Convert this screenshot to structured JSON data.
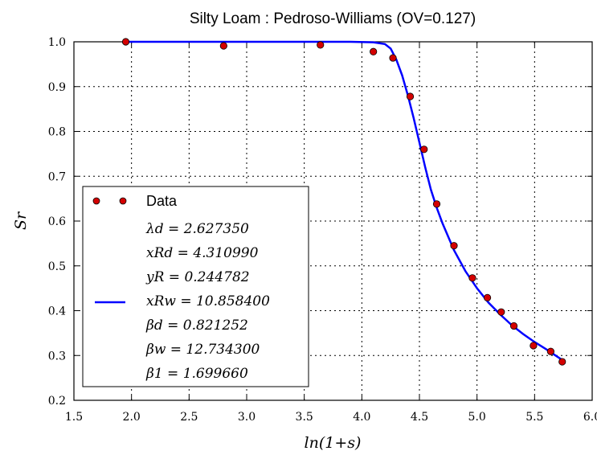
{
  "chart_data": {
    "type": "scatter",
    "title": "Silty Loam : Pedroso-Williams (OV=0.127)",
    "xlabel": "ln(1+s)",
    "ylabel": "Sr",
    "xlim": [
      1.5,
      6.0
    ],
    "ylim": [
      0.2,
      1.0
    ],
    "x_ticks": [
      "1.5",
      "2.0",
      "2.5",
      "3.0",
      "3.5",
      "4.0",
      "4.5",
      "5.0",
      "5.5",
      "6.0"
    ],
    "y_ticks": [
      "0.2",
      "0.3",
      "0.4",
      "0.5",
      "0.6",
      "0.7",
      "0.8",
      "0.9",
      "1.0"
    ],
    "grid": true,
    "legend_position": "lower-left",
    "series": [
      {
        "name": "Data",
        "kind": "scatter",
        "color": "#d40000",
        "x": [
          1.95,
          2.8,
          3.64,
          4.1,
          4.27,
          4.42,
          4.54,
          4.65,
          4.8,
          4.96,
          5.09,
          5.21,
          5.32,
          5.49,
          5.64,
          5.74
        ],
        "y": [
          1.0,
          0.991,
          0.993,
          0.978,
          0.964,
          0.878,
          0.76,
          0.638,
          0.545,
          0.473,
          0.429,
          0.397,
          0.366,
          0.322,
          0.309,
          0.286
        ]
      },
      {
        "name": "fit",
        "kind": "line",
        "color": "#0000ff",
        "x": [
          1.95,
          2.5,
          3.0,
          3.5,
          3.9,
          4.1,
          4.2,
          4.25,
          4.3,
          4.35,
          4.4,
          4.45,
          4.5,
          4.55,
          4.6,
          4.65,
          4.7,
          4.8,
          4.9,
          5.0,
          5.1,
          5.2,
          5.3,
          5.4,
          5.5,
          5.6,
          5.74
        ],
        "y": [
          1.0,
          1.0,
          1.0,
          1.0,
          1.0,
          0.999,
          0.995,
          0.985,
          0.96,
          0.925,
          0.88,
          0.83,
          0.775,
          0.72,
          0.67,
          0.63,
          0.595,
          0.535,
          0.488,
          0.45,
          0.418,
          0.392,
          0.368,
          0.348,
          0.33,
          0.314,
          0.29
        ]
      }
    ],
    "legend": {
      "data_label": "Data",
      "fit_params": [
        "λd = 2.627350",
        "xRd = 4.310990",
        "yR = 0.244782",
        "xRw = 10.858400",
        "βd = 0.821252",
        "βw = 12.734300",
        "β1 = 1.699660"
      ]
    }
  }
}
